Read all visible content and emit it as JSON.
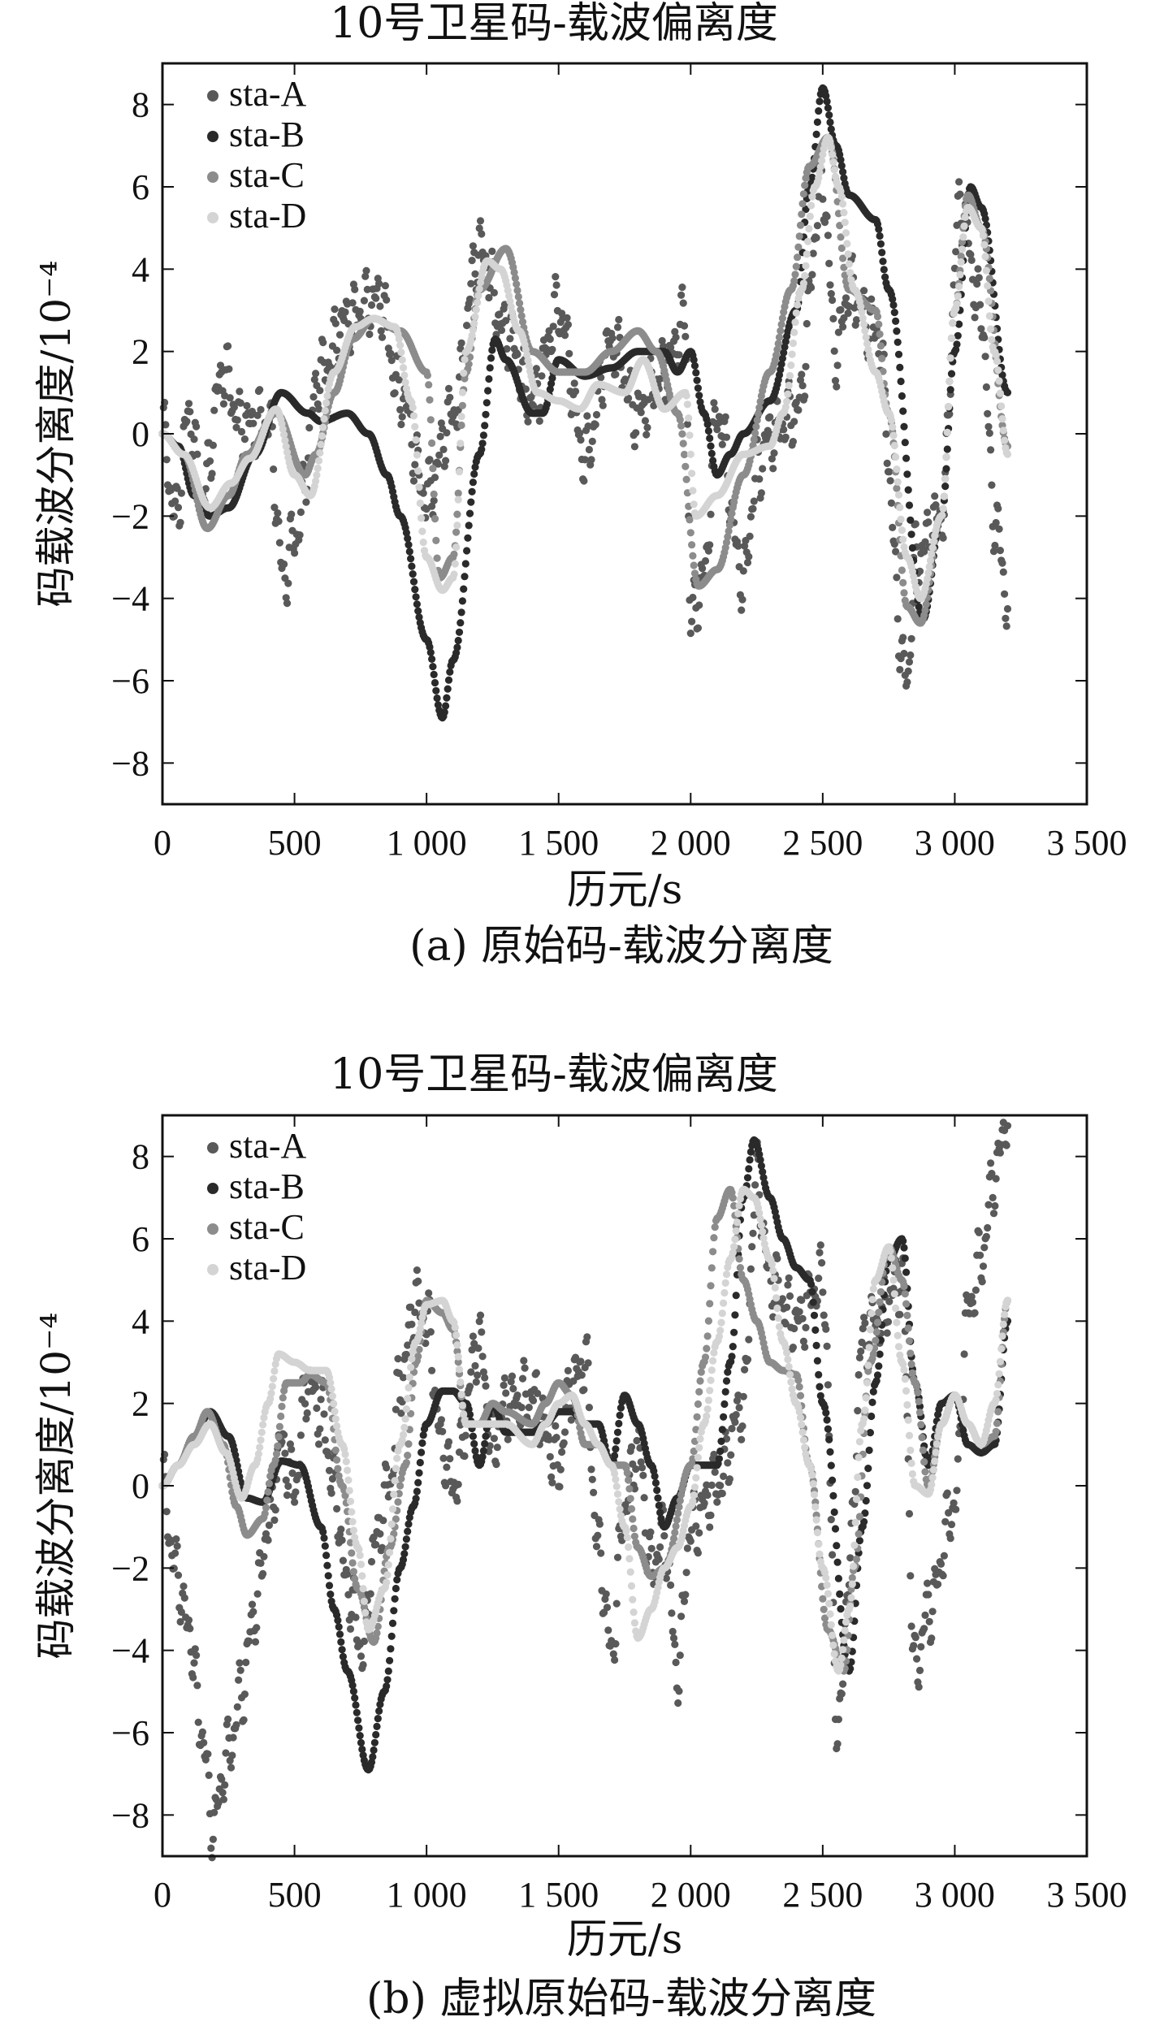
{
  "chart_data": [
    {
      "type": "scatter",
      "title": "10号卫星码-载波偏离度",
      "caption": "(a) 原始码-载波分离度",
      "xlabel": "历元/s",
      "ylabel": "码载波分离度/10⁻⁴",
      "xlim": [
        0,
        3500
      ],
      "ylim": [
        -9,
        9
      ],
      "xticks": [
        0,
        500,
        1000,
        1500,
        2000,
        2500,
        3000,
        3500
      ],
      "xtick_labels": [
        "0",
        "500",
        "1 000",
        "1 500",
        "2 000",
        "2 500",
        "3 000",
        "3 500"
      ],
      "yticks": [
        8,
        6,
        4,
        2,
        0,
        -2,
        -4,
        -6,
        -8
      ],
      "ytick_labels": [
        "8",
        "6",
        "4",
        "2",
        "0",
        "−2",
        "−4",
        "−6",
        "−8"
      ],
      "grid": false,
      "legend_position": "top-left",
      "series": [
        {
          "name": "sta-A",
          "color": "#595959",
          "x": [
            0,
            50,
            100,
            150,
            230,
            300,
            400,
            460,
            500,
            600,
            700,
            820,
            900,
            1000,
            1100,
            1200,
            1300,
            1400,
            1500,
            1600,
            1700,
            1800,
            1900,
            1980,
            2000,
            2050,
            2100,
            2200,
            2250,
            2300,
            2400,
            2500,
            2550,
            2600,
            2700,
            2820,
            2850,
            2950,
            3020,
            3100,
            3150,
            3200
          ],
          "y": [
            0,
            -2,
            0.5,
            -1.5,
            1.5,
            0.2,
            0.3,
            -3.5,
            -2.5,
            1.5,
            2.8,
            3.3,
            1,
            -1.5,
            0.5,
            4.5,
            2.5,
            0.8,
            3,
            -0.5,
            2.2,
            0.5,
            1.5,
            2.8,
            -4.5,
            -3.5,
            0.5,
            -3.5,
            -1,
            0,
            0.5,
            6,
            2,
            3.5,
            2.5,
            -6,
            -3,
            -2,
            5.5,
            3,
            -2,
            -4
          ]
        },
        {
          "name": "sta-B",
          "color": "#2a2a2a",
          "x": [
            0,
            60,
            120,
            180,
            250,
            350,
            450,
            550,
            600,
            700,
            780,
            850,
            900,
            1000,
            1060,
            1100,
            1200,
            1260,
            1300,
            1400,
            1440,
            1500,
            1600,
            1700,
            1800,
            1900,
            1950,
            2000,
            2050,
            2100,
            2150,
            2200,
            2300,
            2400,
            2450,
            2500,
            2550,
            2600,
            2700,
            2750,
            2880,
            2950,
            3000,
            3060,
            3100,
            3200
          ],
          "y": [
            0,
            -0.3,
            -1.5,
            -2.0,
            -1.8,
            -0.5,
            1.0,
            0.5,
            0.3,
            0.5,
            0.0,
            -1.0,
            -2.0,
            -5.0,
            -6.9,
            -5.5,
            -0.5,
            2.3,
            1.8,
            0.5,
            0.5,
            1.8,
            1.4,
            1.6,
            2.0,
            2.0,
            1.5,
            2.0,
            0.5,
            -1.0,
            -0.5,
            0.0,
            0.8,
            3.0,
            6.0,
            8.4,
            7.0,
            5.8,
            5.2,
            3.5,
            -4.5,
            -2.0,
            2.0,
            6.0,
            5.5,
            1.0
          ]
        },
        {
          "name": "sta-C",
          "color": "#8c8c8c",
          "x": [
            0,
            80,
            170,
            250,
            320,
            430,
            540,
            580,
            650,
            720,
            800,
            900,
            1000,
            1050,
            1100,
            1150,
            1200,
            1300,
            1400,
            1500,
            1600,
            1700,
            1800,
            1870,
            1950,
            2030,
            2100,
            2200,
            2300,
            2380,
            2450,
            2520,
            2600,
            2700,
            2750,
            2820,
            2870,
            2950,
            3000,
            3050,
            3100,
            3200
          ],
          "y": [
            0,
            -0.5,
            -2.3,
            -1.5,
            -0.5,
            0.5,
            -1.0,
            -0.5,
            1.0,
            2.3,
            2.8,
            2.5,
            1.5,
            -3.5,
            -3.0,
            1.5,
            3.5,
            4.5,
            2.0,
            1.5,
            1.5,
            2.0,
            2.5,
            2.0,
            0.5,
            -3.7,
            -3.3,
            -1.0,
            1.5,
            3.5,
            6.5,
            7.2,
            3.5,
            3.0,
            0.5,
            -4.2,
            -4.6,
            -2.0,
            3.0,
            5.8,
            5.0,
            -0.3
          ]
        },
        {
          "name": "sta-D",
          "color": "#d4d4d4",
          "x": [
            0,
            80,
            180,
            260,
            330,
            430,
            500,
            560,
            650,
            730,
            800,
            880,
            940,
            1000,
            1060,
            1100,
            1150,
            1230,
            1280,
            1350,
            1420,
            1500,
            1580,
            1650,
            1750,
            1820,
            1900,
            1980,
            2020,
            2100,
            2200,
            2300,
            2350,
            2420,
            2470,
            2520,
            2560,
            2620,
            2700,
            2750,
            2820,
            2870,
            2950,
            3000,
            3050,
            3100,
            3150,
            3200
          ],
          "y": [
            0,
            -0.5,
            -1.8,
            -1.2,
            -0.6,
            0.6,
            -1.0,
            -1.5,
            1.5,
            2.6,
            2.8,
            2.6,
            0.8,
            -3.0,
            -3.8,
            -3.5,
            2.0,
            4.2,
            4.0,
            2.5,
            1.0,
            0.8,
            0.6,
            1.2,
            1.0,
            1.8,
            0.6,
            1.0,
            -2.0,
            -1.5,
            -0.5,
            -0.3,
            0.5,
            3.5,
            6.0,
            7.2,
            6.0,
            3.5,
            1.5,
            0.5,
            -3.0,
            -4.0,
            -2.0,
            3.0,
            5.5,
            5.0,
            2.0,
            -0.5
          ]
        }
      ]
    },
    {
      "type": "scatter",
      "title": "10号卫星码-载波偏离度",
      "caption": "(b) 虚拟原始码-载波分离度",
      "xlabel": "历元/s",
      "ylabel": "码载波分离度/10⁻⁴",
      "xlim": [
        0,
        3500
      ],
      "ylim": [
        -9,
        9
      ],
      "xticks": [
        0,
        500,
        1000,
        1500,
        2000,
        2500,
        3000,
        3500
      ],
      "xtick_labels": [
        "0",
        "500",
        "1 000",
        "1 500",
        "2 000",
        "2 500",
        "3 000",
        "3 500"
      ],
      "yticks": [
        8,
        6,
        4,
        2,
        0,
        -2,
        -4,
        -6,
        -8
      ],
      "ytick_labels": [
        "8",
        "6",
        "4",
        "2",
        "0",
        "−2",
        "−4",
        "−6",
        "−8"
      ],
      "grid": false,
      "legend_position": "top-left",
      "series": [
        {
          "name": "sta-A",
          "color": "#595959",
          "x": [
            0,
            50,
            100,
            150,
            190,
            250,
            300,
            350,
            400,
            450,
            500,
            550,
            600,
            650,
            700,
            760,
            800,
            860,
            900,
            960,
            1000,
            1060,
            1100,
            1200,
            1250,
            1300,
            1400,
            1500,
            1550,
            1600,
            1650,
            1700,
            1750,
            1800,
            1850,
            1900,
            1950,
            2000,
            2100,
            2200,
            2250,
            2300,
            2400,
            2500,
            2560,
            2600,
            2650,
            2700,
            2800,
            2850,
            2900,
            3000,
            3050,
            3100,
            3150,
            3200
          ],
          "y": [
            0,
            -2,
            -3.5,
            -6,
            -8.2,
            -6.5,
            -5,
            -3,
            -1,
            1,
            0,
            2.5,
            1.8,
            0,
            -2.5,
            -4,
            -1.5,
            0,
            2.5,
            4.5,
            4,
            1,
            0,
            3.5,
            1,
            2,
            2.2,
            0.5,
            2.5,
            3,
            -1.5,
            -4,
            -0.5,
            1,
            -2,
            -1.2,
            -4.5,
            -1,
            0,
            2,
            7.5,
            5,
            4,
            5,
            -6,
            -2,
            3.5,
            4,
            5,
            -4.5,
            -3,
            -0.5,
            4.2,
            5.5,
            7.5,
            9
          ]
        },
        {
          "name": "sta-B",
          "color": "#2a2a2a",
          "x": [
            0,
            60,
            120,
            180,
            250,
            320,
            380,
            450,
            520,
            600,
            650,
            700,
            780,
            840,
            900,
            950,
            1000,
            1060,
            1100,
            1150,
            1200,
            1250,
            1300,
            1400,
            1450,
            1500,
            1550,
            1600,
            1650,
            1700,
            1750,
            1800,
            1850,
            1900,
            1950,
            2000,
            2100,
            2150,
            2200,
            2240,
            2300,
            2350,
            2400,
            2450,
            2500,
            2600,
            2650,
            2700,
            2750,
            2800,
            2850,
            2900,
            2950,
            3000,
            3050,
            3100,
            3150,
            3200
          ],
          "y": [
            0,
            0.5,
            1.2,
            1.8,
            1.2,
            -0.3,
            -0.4,
            0.6,
            0.5,
            -1.0,
            -3.0,
            -4.5,
            -6.9,
            -5.0,
            -2.0,
            -0.5,
            1.5,
            2.3,
            2.3,
            2.0,
            0.5,
            2.0,
            1.3,
            1.3,
            1.5,
            1.8,
            1.8,
            1.5,
            1.5,
            0.5,
            2.2,
            1.5,
            0.5,
            -1.0,
            -0.3,
            0.5,
            0.5,
            3.0,
            7.0,
            8.4,
            7.0,
            6.0,
            5.3,
            5.0,
            2.0,
            -4.5,
            -1.0,
            2.5,
            5.5,
            6.0,
            2.5,
            0.5,
            2.0,
            2.2,
            1.0,
            0.8,
            1.0,
            4.0
          ]
        },
        {
          "name": "sta-C",
          "color": "#8c8c8c",
          "x": [
            0,
            60,
            120,
            170,
            230,
            280,
            320,
            380,
            420,
            470,
            520,
            560,
            620,
            680,
            740,
            800,
            860,
            920,
            960,
            1000,
            1060,
            1100,
            1150,
            1200,
            1250,
            1300,
            1400,
            1450,
            1500,
            1550,
            1600,
            1650,
            1700,
            1750,
            1800,
            1850,
            1900,
            2000,
            2050,
            2100,
            2150,
            2200,
            2250,
            2300,
            2350,
            2400,
            2450,
            2520,
            2580,
            2620,
            2680,
            2750,
            2800,
            2850,
            2900,
            2950,
            3000,
            3050,
            3100,
            3150,
            3200
          ],
          "y": [
            0,
            0.5,
            1.2,
            1.8,
            1.0,
            -0.5,
            -1.2,
            -0.8,
            0.5,
            2.5,
            2.5,
            2.7,
            2.5,
            0.0,
            -2.5,
            -3.8,
            -1.5,
            0.5,
            3.0,
            4.5,
            4.2,
            3.8,
            1.5,
            1.5,
            2.0,
            1.8,
            1.5,
            2.0,
            2.5,
            2.2,
            1.0,
            1.0,
            0.5,
            0.5,
            -1.5,
            -2.2,
            -2.0,
            0.5,
            3.0,
            6.5,
            7.2,
            5.0,
            4.0,
            3.0,
            2.8,
            2.7,
            0.5,
            -3.5,
            -4.5,
            -2.0,
            3.0,
            5.8,
            5.0,
            2.5,
            0.0,
            1.5,
            2.2,
            1.5,
            1.0,
            1.2,
            4.5
          ]
        },
        {
          "name": "sta-D",
          "color": "#d4d4d4",
          "x": [
            0,
            60,
            120,
            180,
            240,
            300,
            350,
            400,
            440,
            500,
            560,
            620,
            680,
            740,
            780,
            840,
            900,
            960,
            1000,
            1060,
            1100,
            1150,
            1200,
            1250,
            1300,
            1400,
            1450,
            1500,
            1550,
            1600,
            1650,
            1700,
            1750,
            1800,
            1850,
            1900,
            1950,
            2000,
            2050,
            2100,
            2150,
            2200,
            2240,
            2300,
            2350,
            2400,
            2450,
            2500,
            2560,
            2600,
            2650,
            2700,
            2750,
            2800,
            2850,
            2900,
            2950,
            3000,
            3050,
            3100,
            3150,
            3200
          ],
          "y": [
            0,
            0.5,
            1.0,
            1.5,
            0.8,
            -0.3,
            0.5,
            2.0,
            3.2,
            3.0,
            2.8,
            2.8,
            1.0,
            -1.5,
            -3.5,
            -2.5,
            1.0,
            3.5,
            4.4,
            4.5,
            4.0,
            1.5,
            1.5,
            1.5,
            1.5,
            1.0,
            1.5,
            2.0,
            2.2,
            1.5,
            1.0,
            0.5,
            -1.0,
            -3.7,
            -3.0,
            -2.0,
            -1.5,
            -0.5,
            1.5,
            3.5,
            5.5,
            7.2,
            7.0,
            5.5,
            3.5,
            2.0,
            0.5,
            -2.0,
            -4.5,
            -3.0,
            1.5,
            5.0,
            5.8,
            3.0,
            0.0,
            -0.2,
            1.5,
            2.2,
            1.5,
            1.0,
            2.0,
            4.5
          ]
        }
      ]
    }
  ]
}
